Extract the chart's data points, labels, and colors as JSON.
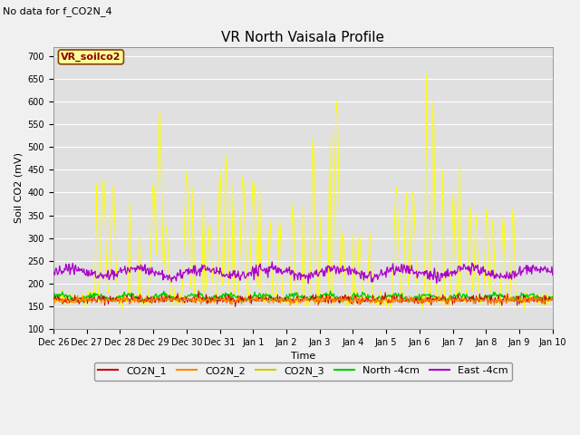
{
  "title": "VR North Vaisala Profile",
  "subtitle": "No data for f_CO2N_4",
  "xlabel": "Time",
  "ylabel": "Soil CO2 (mV)",
  "ylim": [
    100,
    720
  ],
  "yticks": [
    100,
    150,
    200,
    250,
    300,
    350,
    400,
    450,
    500,
    550,
    600,
    650,
    700
  ],
  "x_tick_labels": [
    "Dec 26",
    "Dec 27",
    "Dec 28",
    "Dec 29",
    "Dec 30",
    "Dec 31",
    "Jan 1",
    "Jan 2",
    "Jan 3",
    "Jan 4",
    "Jan 5",
    "Jan 6",
    "Jan 7",
    "Jan 8",
    "Jan 9",
    "Jan 10"
  ],
  "inset_label": "VR_soilco2",
  "background_color": "#f0f0f0",
  "plot_bg_color": "#e0e0e0",
  "title_fontsize": 11,
  "axis_label_fontsize": 8,
  "tick_label_fontsize": 7,
  "subtitle_fontsize": 8,
  "legend_fontsize": 8,
  "co2n1_color": "#cc0000",
  "co2n2_color": "#ff8800",
  "co2n3_color": "#ffff00",
  "north_color": "#00cc00",
  "east_color": "#aa00cc"
}
